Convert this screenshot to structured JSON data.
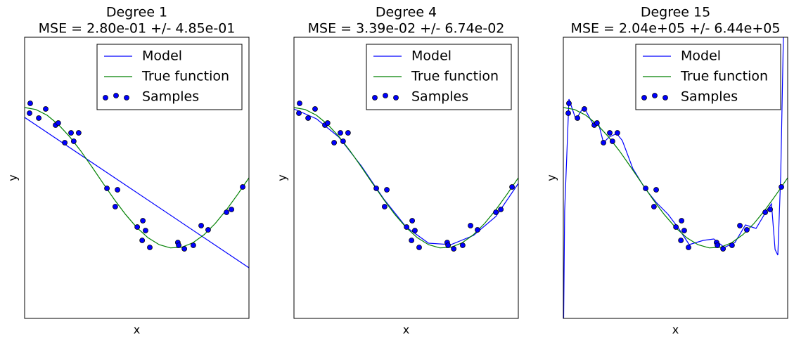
{
  "chart_data": [
    {
      "type": "line",
      "title": "Degree 1",
      "subtitle": "MSE = 2.80e-01 +/- 4.85e-01",
      "xlabel": "x",
      "ylabel": "y",
      "xlim": [
        0,
        1
      ],
      "ylim": [
        -2,
        2
      ],
      "legend": "upper right",
      "series": [
        {
          "name": "Model",
          "color": "#0000ff",
          "x": [
            0,
            1
          ],
          "values": [
            0.86,
            -1.28
          ]
        },
        {
          "name": "True function",
          "color": "#008000",
          "x": [
            0,
            0.05,
            0.1,
            0.15,
            0.2,
            0.25,
            0.3,
            0.35,
            0.4,
            0.45,
            0.5,
            0.55,
            0.6,
            0.65,
            0.7,
            0.75,
            0.8,
            0.85,
            0.9,
            0.95,
            1
          ],
          "values": [
            1,
            0.972,
            0.891,
            0.76,
            0.588,
            0.383,
            0.156,
            -0.078,
            -0.309,
            -0.522,
            -0.707,
            -0.853,
            -0.951,
            -0.997,
            -0.988,
            -0.924,
            -0.809,
            -0.649,
            -0.454,
            -0.233,
            0
          ]
        },
        {
          "name": "Samples",
          "type": "scatter",
          "color": "#0000ff",
          "x": [
            0.022,
            0.025,
            0.063,
            0.094,
            0.138,
            0.15,
            0.179,
            0.207,
            0.219,
            0.241,
            0.367,
            0.404,
            0.414,
            0.502,
            0.524,
            0.527,
            0.539,
            0.558,
            0.683,
            0.687,
            0.712,
            0.752,
            0.787,
            0.818,
            0.9,
            0.922,
            0.972
          ],
          "values": [
            0.92,
            1.06,
            0.85,
            0.98,
            0.75,
            0.78,
            0.5,
            0.64,
            0.52,
            0.64,
            -0.15,
            -0.41,
            -0.17,
            -0.7,
            -0.89,
            -0.61,
            -0.75,
            -0.99,
            -0.92,
            -0.96,
            -1.01,
            -0.96,
            -0.68,
            -0.74,
            -0.49,
            -0.45,
            -0.13
          ]
        }
      ]
    },
    {
      "type": "line",
      "title": "Degree 4",
      "subtitle": "MSE = 3.39e-02 +/- 6.74e-02",
      "xlabel": "x",
      "ylabel": "y",
      "xlim": [
        0,
        1
      ],
      "ylim": [
        -2,
        2
      ],
      "legend": "upper right",
      "series": [
        {
          "name": "Model",
          "color": "#0000ff",
          "x": [
            0,
            0.1,
            0.2,
            0.3,
            0.4,
            0.5,
            0.6,
            0.7,
            0.8,
            0.9,
            1
          ],
          "values": [
            0.98,
            0.84,
            0.58,
            0.17,
            -0.3,
            -0.7,
            -0.93,
            -0.95,
            -0.82,
            -0.55,
            -0.08
          ]
        },
        {
          "name": "True function",
          "color": "#008000",
          "x": [
            0,
            0.05,
            0.1,
            0.15,
            0.2,
            0.25,
            0.3,
            0.35,
            0.4,
            0.45,
            0.5,
            0.55,
            0.6,
            0.65,
            0.7,
            0.75,
            0.8,
            0.85,
            0.9,
            0.95,
            1
          ],
          "values": [
            1,
            0.972,
            0.891,
            0.76,
            0.588,
            0.383,
            0.156,
            -0.078,
            -0.309,
            -0.522,
            -0.707,
            -0.853,
            -0.951,
            -0.997,
            -0.988,
            -0.924,
            -0.809,
            -0.649,
            -0.454,
            -0.233,
            0
          ]
        },
        {
          "name": "Samples",
          "type": "scatter",
          "color": "#0000ff",
          "x": [
            0.022,
            0.025,
            0.063,
            0.094,
            0.138,
            0.15,
            0.179,
            0.207,
            0.219,
            0.241,
            0.367,
            0.404,
            0.414,
            0.502,
            0.524,
            0.527,
            0.539,
            0.558,
            0.683,
            0.687,
            0.712,
            0.752,
            0.787,
            0.818,
            0.9,
            0.922,
            0.972
          ],
          "values": [
            0.92,
            1.06,
            0.85,
            0.98,
            0.75,
            0.78,
            0.5,
            0.64,
            0.52,
            0.64,
            -0.15,
            -0.41,
            -0.17,
            -0.7,
            -0.89,
            -0.61,
            -0.75,
            -0.99,
            -0.92,
            -0.96,
            -1.01,
            -0.96,
            -0.68,
            -0.74,
            -0.49,
            -0.45,
            -0.13
          ]
        }
      ]
    },
    {
      "type": "line",
      "title": "Degree 15",
      "subtitle": "MSE = 2.04e+05 +/- 6.44e+05",
      "xlabel": "x",
      "ylabel": "y",
      "xlim": [
        0,
        1
      ],
      "ylim": [
        -2,
        2
      ],
      "legend": "upper right",
      "series": [
        {
          "name": "Model",
          "color": "#0000ff",
          "x": [
            0,
            0.006,
            0.025,
            0.056,
            0.091,
            0.138,
            0.154,
            0.179,
            0.204,
            0.238,
            0.263,
            0.31,
            0.364,
            0.414,
            0.467,
            0.514,
            0.561,
            0.624,
            0.671,
            0.718,
            0.765,
            0.812,
            0.859,
            0.906,
            0.928,
            0.944,
            0.956,
            0.969,
            0.981,
            0.99
          ],
          "values": [
            -2.5,
            -0.47,
            1.12,
            0.83,
            1.01,
            0.73,
            0.81,
            0.5,
            0.58,
            0.63,
            0.53,
            0.13,
            -0.15,
            -0.35,
            -0.52,
            -0.72,
            -0.95,
            -0.89,
            -0.87,
            -0.99,
            -0.92,
            -0.67,
            -0.72,
            -0.47,
            -0.37,
            -1.02,
            -1.1,
            0.03,
            2.0,
            3.5
          ]
        },
        {
          "name": "True function",
          "color": "#008000",
          "x": [
            0,
            0.05,
            0.1,
            0.15,
            0.2,
            0.25,
            0.3,
            0.35,
            0.4,
            0.45,
            0.5,
            0.55,
            0.6,
            0.65,
            0.7,
            0.75,
            0.8,
            0.85,
            0.9,
            0.95,
            1
          ],
          "values": [
            1,
            0.972,
            0.891,
            0.76,
            0.588,
            0.383,
            0.156,
            -0.078,
            -0.309,
            -0.522,
            -0.707,
            -0.853,
            -0.951,
            -0.997,
            -0.988,
            -0.924,
            -0.809,
            -0.649,
            -0.454,
            -0.233,
            0
          ]
        },
        {
          "name": "Samples",
          "type": "scatter",
          "color": "#0000ff",
          "x": [
            0.022,
            0.025,
            0.063,
            0.094,
            0.138,
            0.15,
            0.179,
            0.207,
            0.219,
            0.241,
            0.367,
            0.404,
            0.414,
            0.502,
            0.524,
            0.527,
            0.539,
            0.558,
            0.683,
            0.687,
            0.712,
            0.752,
            0.787,
            0.818,
            0.9,
            0.922,
            0.972
          ],
          "values": [
            0.92,
            1.06,
            0.85,
            0.98,
            0.75,
            0.78,
            0.5,
            0.64,
            0.52,
            0.64,
            -0.15,
            -0.41,
            -0.17,
            -0.7,
            -0.89,
            -0.61,
            -0.75,
            -0.99,
            -0.92,
            -0.96,
            -1.01,
            -0.96,
            -0.68,
            -0.74,
            -0.49,
            -0.45,
            -0.13
          ]
        }
      ]
    }
  ]
}
